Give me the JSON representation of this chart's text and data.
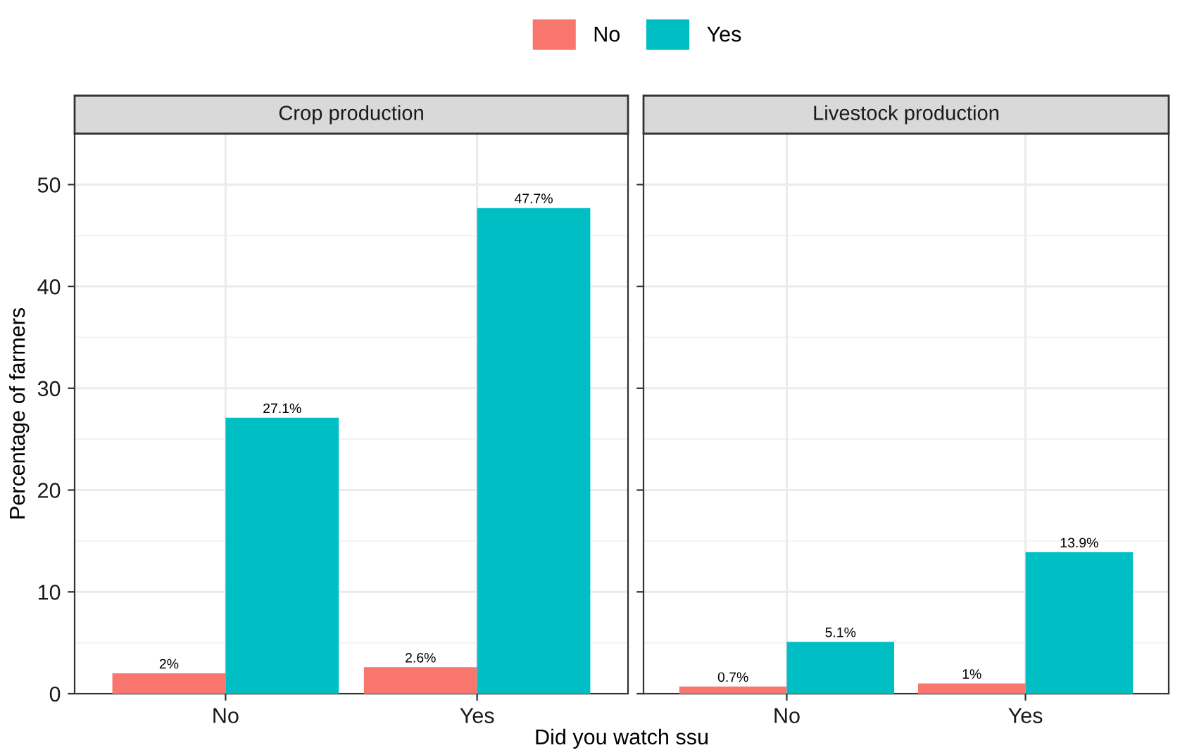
{
  "chart_data": [
    {
      "type": "bar",
      "title": "Crop production",
      "ylabel": "Percentage of farmers",
      "xlabel": "Did you watch ssu",
      "categories": [
        "No",
        "Yes"
      ],
      "ylim": [
        0,
        55
      ],
      "yticks": [
        0,
        10,
        20,
        30,
        40,
        50
      ],
      "grid": true,
      "legend": "top",
      "series": [
        {
          "name": "No",
          "color": "#f8766d",
          "values": [
            2,
            2.6
          ],
          "value_labels": [
            "2%",
            "2.6%"
          ]
        },
        {
          "name": "Yes",
          "color": "#00bfc4",
          "values": [
            27.1,
            47.7
          ],
          "value_labels": [
            "27.1%",
            "47.7%"
          ]
        }
      ]
    },
    {
      "type": "bar",
      "title": "Livestock production",
      "categories": [
        "No",
        "Yes"
      ],
      "ylim": [
        0,
        55
      ],
      "yticks": [
        0,
        10,
        20,
        30,
        40,
        50
      ],
      "grid": true,
      "tick_labels": "x",
      "series": [
        {
          "color": "#f8766d",
          "values": [
            0.7,
            1
          ],
          "value_labels": [
            "0.7%",
            "1%"
          ]
        },
        {
          "color": "#00bfc4",
          "values": [
            5.1,
            13.9
          ],
          "value_labels": [
            "5.1%",
            "13.9%"
          ]
        }
      ]
    }
  ]
}
